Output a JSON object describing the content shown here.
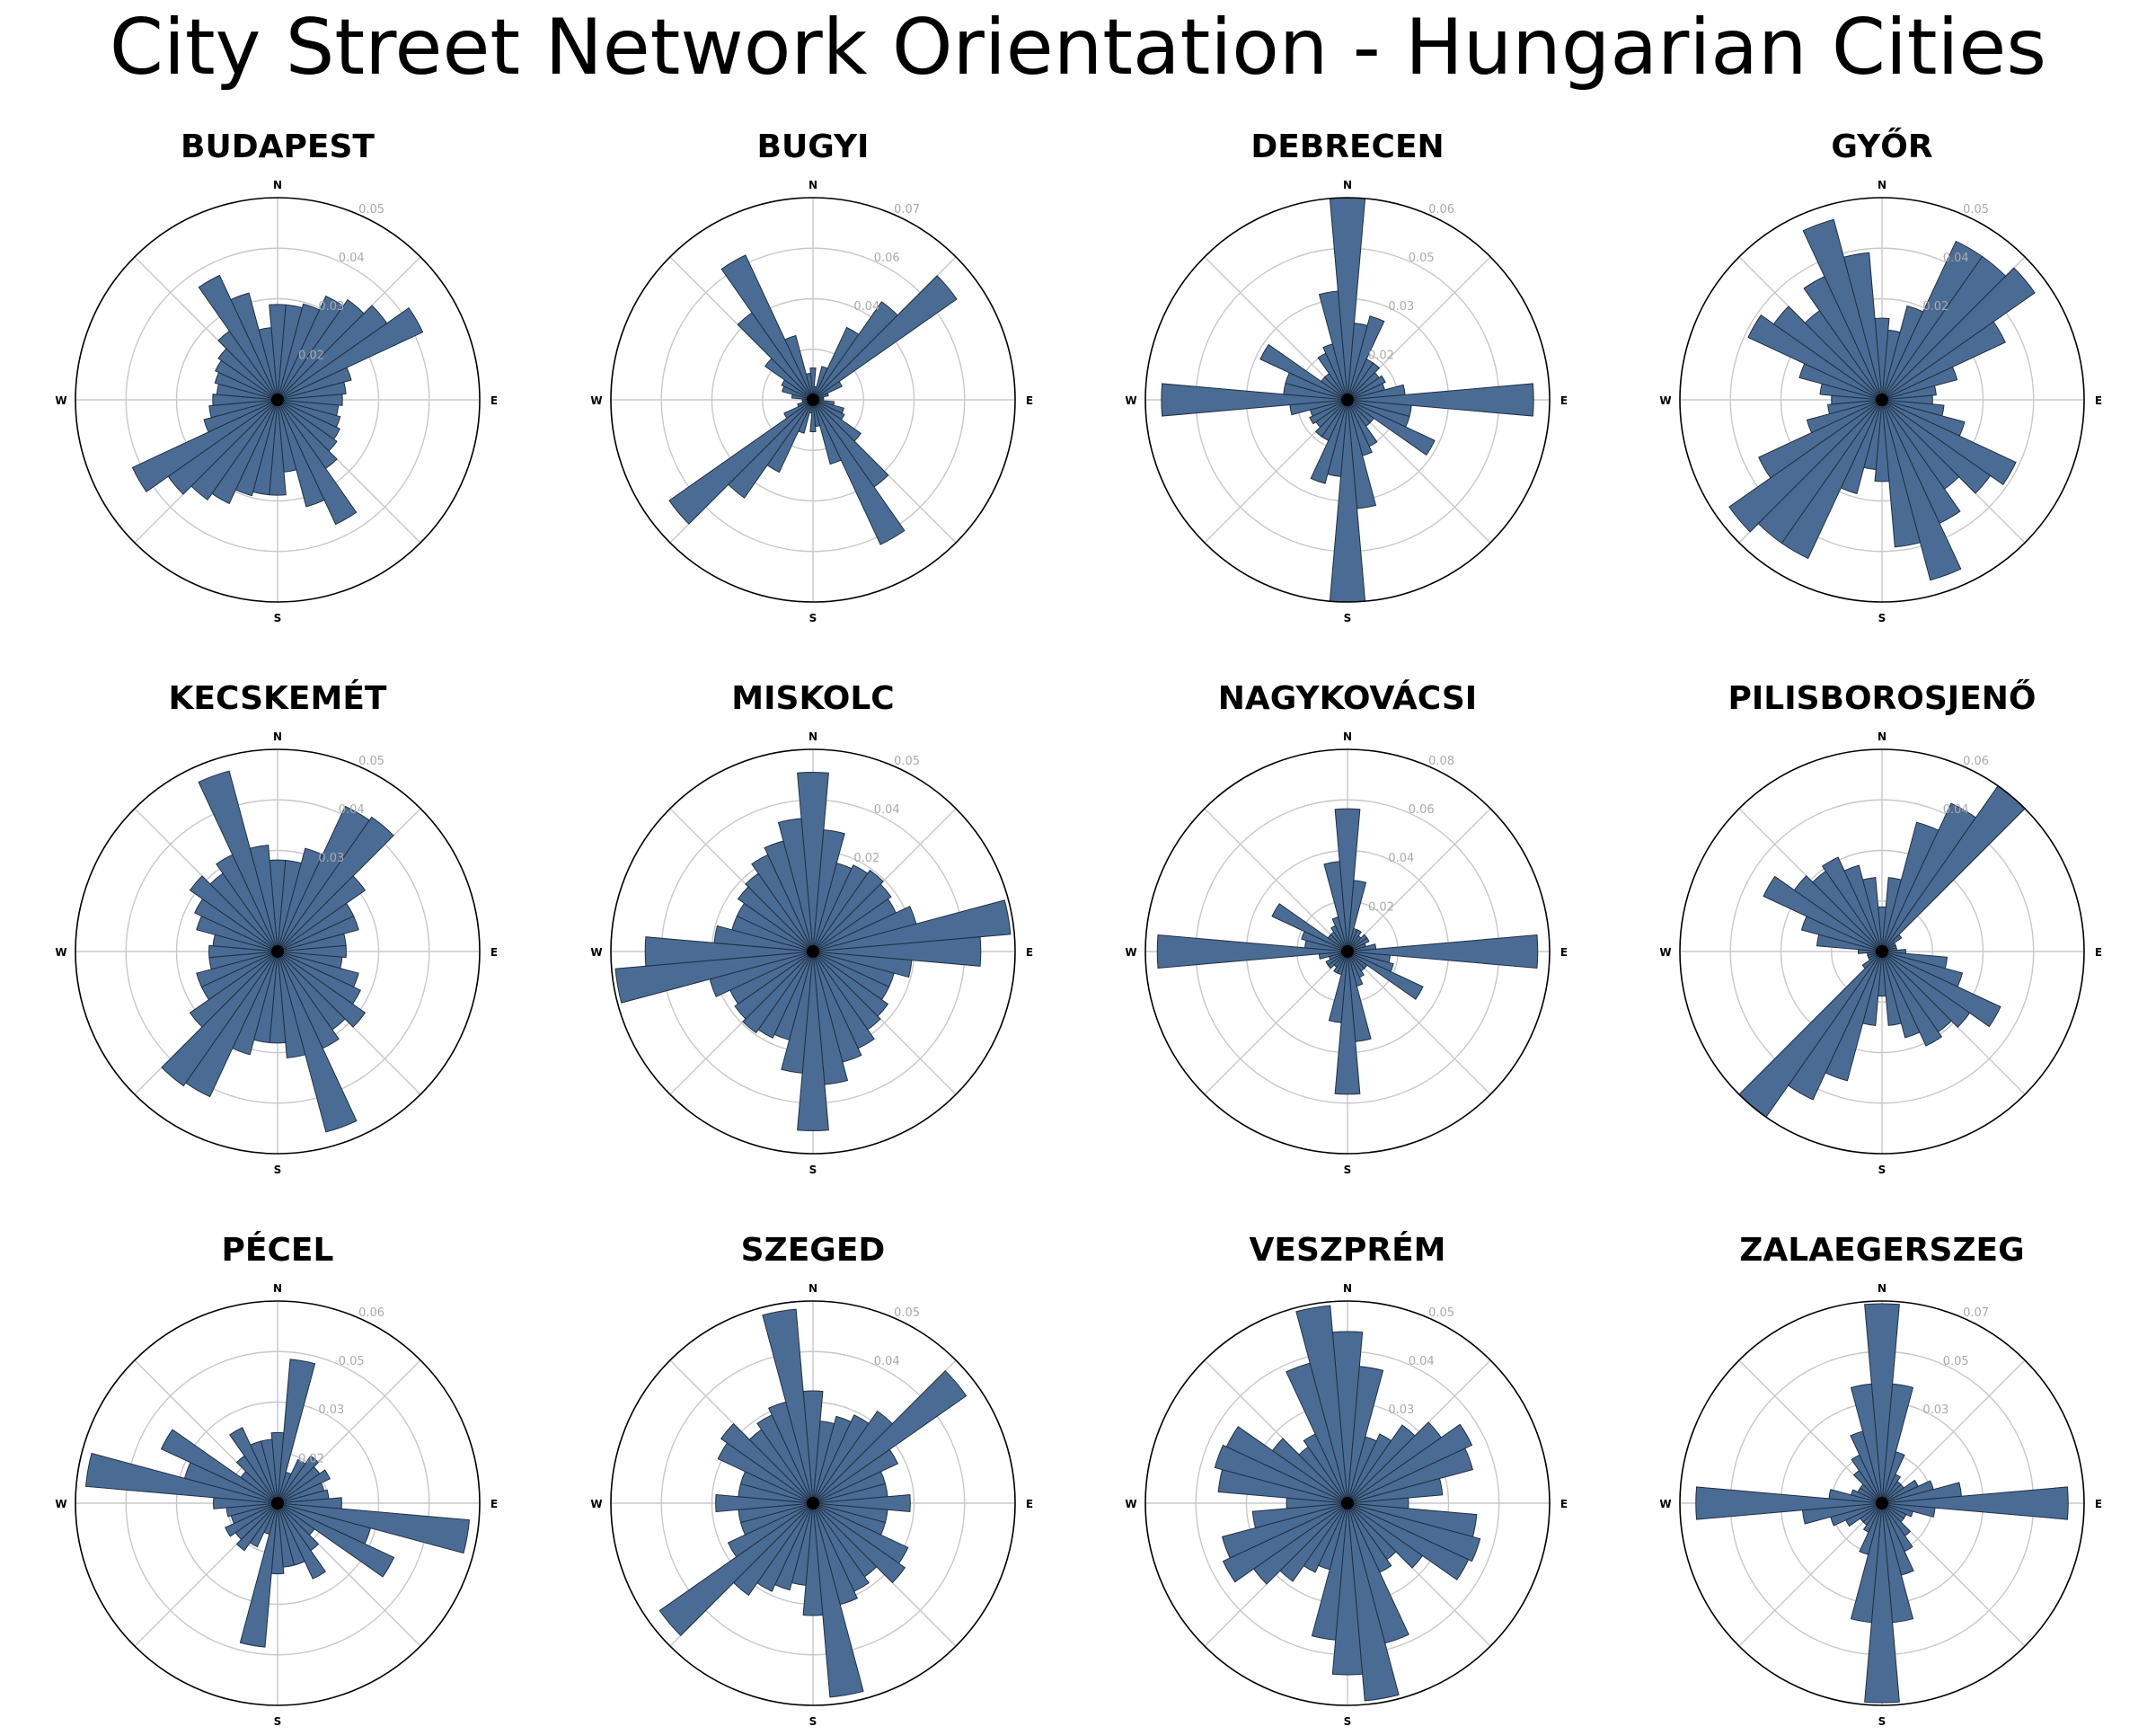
{
  "title": "City Street Network Orientation - Hungarian Cities",
  "chart_data": [
    {
      "type": "polar-bar",
      "title": "BUDAPEST",
      "directions": [
        "N",
        "E",
        "S",
        "W"
      ],
      "rticks": [
        "0.02",
        "0.03",
        "0.04",
        "0.05"
      ],
      "rmax": 0.053,
      "values": [
        0.025,
        0.025,
        0.026,
        0.03,
        0.032,
        0.035,
        0.042,
        0.02,
        0.018,
        0.017,
        0.016,
        0.017,
        0.018,
        0.019,
        0.022,
        0.036,
        0.029,
        0.019,
        0.025,
        0.025,
        0.026,
        0.03,
        0.032,
        0.035,
        0.042,
        0.02,
        0.018,
        0.017,
        0.016,
        0.017,
        0.018,
        0.019,
        0.022,
        0.036,
        0.029,
        0.019
      ]
    },
    {
      "type": "polar-bar",
      "title": "BUGYI",
      "directions": [
        "N",
        "E",
        "S",
        "W"
      ],
      "rticks": [
        "0.04",
        "0.06",
        "0.07"
      ],
      "rmax": 0.076,
      "values": [
        0.012,
        0.005,
        0.013,
        0.03,
        0.045,
        0.066,
        0.012,
        0.006,
        0.004,
        0.004,
        0.008,
        0.012,
        0.013,
        0.022,
        0.04,
        0.06,
        0.025,
        0.01,
        0.012,
        0.005,
        0.013,
        0.03,
        0.045,
        0.066,
        0.012,
        0.006,
        0.004,
        0.004,
        0.008,
        0.012,
        0.013,
        0.022,
        0.04,
        0.06,
        0.025,
        0.01
      ]
    },
    {
      "type": "polar-bar",
      "title": "DEBRECEN",
      "directions": [
        "N",
        "E",
        "S",
        "W"
      ],
      "rticks": [
        "0.02",
        "0.03",
        "0.05",
        "0.06"
      ],
      "rmax": 0.063,
      "values": [
        0.063,
        0.024,
        0.027,
        0.014,
        0.014,
        0.012,
        0.013,
        0.012,
        0.018,
        0.058,
        0.02,
        0.02,
        0.03,
        0.01,
        0.01,
        0.016,
        0.018,
        0.034,
        0.063,
        0.024,
        0.027,
        0.014,
        0.014,
        0.012,
        0.013,
        0.012,
        0.018,
        0.058,
        0.02,
        0.02,
        0.03,
        0.01,
        0.01,
        0.016,
        0.018,
        0.034
      ]
    },
    {
      "type": "polar-bar",
      "title": "GYŐR",
      "directions": [
        "N",
        "E",
        "S",
        "W"
      ],
      "rticks": [
        "0.02",
        "0.04",
        "0.05"
      ],
      "rmax": 0.052,
      "values": [
        0.021,
        0.018,
        0.025,
        0.045,
        0.045,
        0.048,
        0.035,
        0.02,
        0.014,
        0.013,
        0.016,
        0.022,
        0.038,
        0.034,
        0.028,
        0.035,
        0.048,
        0.038,
        0.021,
        0.018,
        0.025,
        0.045,
        0.045,
        0.048,
        0.035,
        0.02,
        0.014,
        0.013,
        0.016,
        0.022,
        0.038,
        0.034,
        0.028,
        0.035,
        0.048,
        0.038
      ]
    },
    {
      "type": "polar-bar",
      "title": "KECSKEMÉT",
      "directions": [
        "N",
        "E",
        "S",
        "W"
      ],
      "rticks": [
        "0.03",
        "0.04",
        "0.05"
      ],
      "rmax": 0.053,
      "values": [
        0.024,
        0.024,
        0.028,
        0.042,
        0.043,
        0.028,
        0.022,
        0.022,
        0.018,
        0.018,
        0.017,
        0.022,
        0.024,
        0.028,
        0.025,
        0.028,
        0.049,
        0.028,
        0.024,
        0.024,
        0.028,
        0.042,
        0.043,
        0.028,
        0.022,
        0.022,
        0.018,
        0.018,
        0.017,
        0.022,
        0.024,
        0.028,
        0.025,
        0.028,
        0.049,
        0.028
      ]
    },
    {
      "type": "polar-bar",
      "title": "MISKOLC",
      "directions": [
        "N",
        "E",
        "S",
        "W"
      ],
      "rticks": [
        "0.02",
        "0.04",
        "0.05"
      ],
      "rmax": 0.053,
      "values": [
        0.047,
        0.032,
        0.024,
        0.025,
        0.026,
        0.025,
        0.024,
        0.028,
        0.052,
        0.044,
        0.026,
        0.022,
        0.022,
        0.024,
        0.025,
        0.028,
        0.03,
        0.035,
        0.047,
        0.032,
        0.024,
        0.025,
        0.026,
        0.025,
        0.024,
        0.028,
        0.052,
        0.044,
        0.026,
        0.022,
        0.022,
        0.024,
        0.025,
        0.028,
        0.03,
        0.035
      ]
    },
    {
      "type": "polar-bar",
      "title": "NAGYKOVÁCSI",
      "directions": [
        "N",
        "E",
        "S",
        "W"
      ],
      "rticks": [
        "0.02",
        "0.04",
        "0.06",
        "0.08"
      ],
      "rmax": 0.085,
      "values": [
        0.06,
        0.03,
        0.01,
        0.01,
        0.008,
        0.01,
        0.01,
        0.008,
        0.012,
        0.08,
        0.018,
        0.02,
        0.035,
        0.01,
        0.01,
        0.012,
        0.015,
        0.038,
        0.06,
        0.03,
        0.01,
        0.01,
        0.008,
        0.01,
        0.01,
        0.008,
        0.012,
        0.08,
        0.018,
        0.02,
        0.035,
        0.01,
        0.01,
        0.012,
        0.015,
        0.038
      ]
    },
    {
      "type": "polar-bar",
      "title": "PILISBOROSJENŐ",
      "directions": [
        "N",
        "E",
        "S",
        "W"
      ],
      "rticks": [
        "0.04",
        "0.06"
      ],
      "rmax": 0.068,
      "values": [
        0.015,
        0.025,
        0.045,
        0.055,
        0.068,
        0.008,
        0.005,
        0.005,
        0.005,
        0.008,
        0.022,
        0.028,
        0.044,
        0.036,
        0.033,
        0.035,
        0.03,
        0.025,
        0.015,
        0.025,
        0.045,
        0.055,
        0.068,
        0.008,
        0.005,
        0.005,
        0.005,
        0.008,
        0.022,
        0.028,
        0.044,
        0.036,
        0.033,
        0.035,
        0.03,
        0.025
      ]
    },
    {
      "type": "polar-bar",
      "title": "PÉCEL",
      "directions": [
        "N",
        "E",
        "S",
        "W"
      ],
      "rticks": [
        "0.02",
        "0.03",
        "0.05",
        "0.06"
      ],
      "rmax": 0.063,
      "values": [
        0.022,
        0.045,
        0.01,
        0.015,
        0.018,
        0.016,
        0.018,
        0.015,
        0.016,
        0.02,
        0.06,
        0.03,
        0.04,
        0.014,
        0.018,
        0.026,
        0.02,
        0.02,
        0.022,
        0.045,
        0.01,
        0.015,
        0.018,
        0.016,
        0.018,
        0.015,
        0.016,
        0.02,
        0.06,
        0.03,
        0.04,
        0.014,
        0.018,
        0.026,
        0.02,
        0.02
      ]
    },
    {
      "type": "polar-bar",
      "title": "SZEGED",
      "directions": [
        "N",
        "E",
        "S",
        "W"
      ],
      "rticks": [
        "0.04",
        "0.05"
      ],
      "rmax": 0.054,
      "values": [
        0.03,
        0.022,
        0.024,
        0.026,
        0.03,
        0.05,
        0.025,
        0.02,
        0.02,
        0.026,
        0.02,
        0.02,
        0.028,
        0.03,
        0.024,
        0.026,
        0.028,
        0.052,
        0.03,
        0.022,
        0.024,
        0.026,
        0.03,
        0.05,
        0.025,
        0.02,
        0.02,
        0.026,
        0.02,
        0.02,
        0.028,
        0.03,
        0.024,
        0.026,
        0.028,
        0.052
      ]
    },
    {
      "type": "polar-bar",
      "title": "VESZPRÉM",
      "directions": [
        "N",
        "E",
        "S",
        "W"
      ],
      "rticks": [
        "0.03",
        "0.04",
        "0.05"
      ],
      "rmax": 0.053,
      "values": [
        0.045,
        0.036,
        0.018,
        0.02,
        0.025,
        0.03,
        0.036,
        0.034,
        0.025,
        0.016,
        0.034,
        0.036,
        0.035,
        0.024,
        0.018,
        0.02,
        0.038,
        0.052,
        0.045,
        0.036,
        0.018,
        0.02,
        0.025,
        0.03,
        0.036,
        0.034,
        0.025,
        0.016,
        0.034,
        0.036,
        0.035,
        0.024,
        0.018,
        0.02,
        0.038,
        0.052
      ]
    },
    {
      "type": "polar-bar",
      "title": "ZALAEGERSZEG",
      "directions": [
        "N",
        "E",
        "S",
        "W"
      ],
      "rticks": [
        "0.03",
        "0.05",
        "0.07"
      ],
      "rmax": 0.076,
      "values": [
        0.075,
        0.045,
        0.02,
        0.012,
        0.01,
        0.01,
        0.015,
        0.02,
        0.03,
        0.07,
        0.02,
        0.012,
        0.01,
        0.01,
        0.015,
        0.02,
        0.028,
        0.045,
        0.075,
        0.045,
        0.02,
        0.012,
        0.01,
        0.01,
        0.015,
        0.02,
        0.03,
        0.07,
        0.02,
        0.012,
        0.01,
        0.01,
        0.015,
        0.02,
        0.028,
        0.045
      ]
    }
  ]
}
